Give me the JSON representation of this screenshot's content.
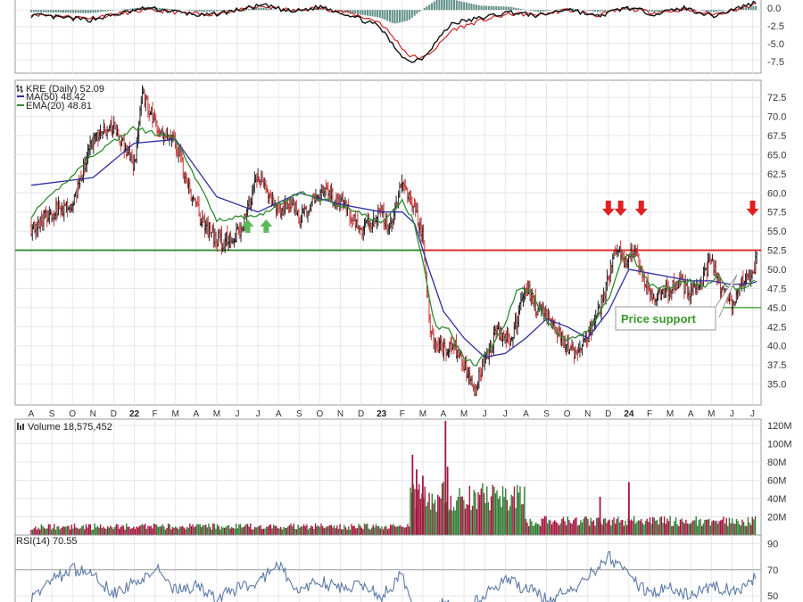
{
  "chart_data": [
    {
      "panel": "macd",
      "type": "line",
      "ylim": [
        -9.5,
        1.5
      ],
      "yticks": [
        "0.0",
        "-2.5",
        "-5.0",
        "-7.5"
      ],
      "ytick_values": [
        0,
        -2.5,
        -5,
        -7.5
      ],
      "series": [
        {
          "role": "macd",
          "color": "#111111",
          "x": [
            0,
            8,
            16,
            24,
            32,
            36,
            40,
            44,
            48,
            50,
            52,
            54,
            56,
            58,
            62,
            66,
            70,
            74,
            78,
            82,
            86,
            90,
            94,
            98,
            100
          ],
          "values": [
            -0.8,
            -1.5,
            0.3,
            -0.9,
            0.7,
            -0.3,
            0.5,
            -0.8,
            -2.5,
            -5.5,
            -7.8,
            -7.2,
            -4.5,
            -2.0,
            -1.2,
            -0.3,
            -0.9,
            0.2,
            -1.0,
            0.4,
            -0.6,
            0.3,
            -0.9,
            0.5,
            1.2
          ]
        },
        {
          "role": "signal",
          "color": "#cc2222",
          "x": [
            0,
            8,
            16,
            24,
            32,
            36,
            40,
            44,
            48,
            50,
            52,
            54,
            56,
            58,
            62,
            66,
            70,
            74,
            78,
            82,
            86,
            90,
            94,
            98,
            100
          ],
          "values": [
            -0.6,
            -1.2,
            0.0,
            -0.7,
            0.5,
            -0.1,
            0.3,
            -0.5,
            -1.8,
            -4.2,
            -6.8,
            -7.3,
            -5.5,
            -3.0,
            -1.6,
            -0.6,
            -0.7,
            0.0,
            -0.8,
            0.2,
            -0.4,
            0.1,
            -0.7,
            0.3,
            0.8
          ]
        }
      ]
    },
    {
      "panel": "price",
      "type": "line",
      "title": "KRE (Daily) 52.09",
      "ylim": [
        32.5,
        74.5
      ],
      "yticks": [
        "72.5",
        "70.0",
        "67.5",
        "65.0",
        "62.5",
        "60.0",
        "57.5",
        "55.0",
        "52.5",
        "50.0",
        "47.5",
        "45.0",
        "42.5",
        "40.0",
        "37.5",
        "35.0"
      ],
      "ytick_values": [
        72.5,
        70,
        67.5,
        65,
        62.5,
        60,
        57.5,
        55,
        52.5,
        50,
        47.5,
        45,
        42.5,
        40,
        37.5,
        35
      ],
      "xticks": [
        "A",
        "S",
        "O",
        "N",
        "D",
        "22",
        "F",
        "M",
        "A",
        "M",
        "J",
        "J",
        "A",
        "S",
        "O",
        "N",
        "D",
        "23",
        "F",
        "M",
        "A",
        "M",
        "J",
        "J",
        "A",
        "S",
        "O",
        "N",
        "D",
        "24",
        "F",
        "M",
        "A",
        "M",
        "J",
        "J"
      ],
      "xtick_positions": [
        0,
        1,
        2,
        3,
        4,
        5,
        6,
        7,
        8,
        9,
        10,
        11,
        12,
        13,
        14,
        15,
        16,
        17,
        18,
        19,
        20,
        21,
        22,
        23,
        24,
        25,
        26,
        27,
        28,
        29,
        30,
        31,
        32,
        33,
        34,
        35
      ],
      "year_ticks": [
        "22",
        "23",
        "24"
      ],
      "legend": [
        {
          "label": "KRE (Daily) 52.09",
          "color": "#000000",
          "kind": "ohlc"
        },
        {
          "label": "MA(50) 48.42",
          "color": "#2c2f9c",
          "kind": "line"
        },
        {
          "label": "EMA(20) 48.81",
          "color": "#2e8b2e",
          "kind": "line"
        }
      ],
      "series": [
        {
          "name": "KRE",
          "color": "#111111",
          "x": [
            0,
            1,
            2,
            3,
            4,
            5,
            5.4,
            6,
            7,
            8,
            8.5,
            9.3,
            10.2,
            11,
            12,
            12.6,
            13,
            14,
            15,
            16,
            17,
            17.4,
            18,
            18.6,
            18.8,
            19,
            19.4,
            20,
            20.5,
            21,
            21.5,
            22,
            22.6,
            23.3,
            24,
            24.5,
            25,
            26,
            26.5,
            27,
            27.5,
            28,
            28.3,
            28.8,
            29.2,
            29.6,
            30,
            30.5,
            31,
            31.5,
            32,
            32.5,
            33,
            33.5,
            34,
            34.5,
            35,
            35.2
          ],
          "values": [
            55.5,
            57.5,
            58.5,
            67.0,
            69.0,
            63.5,
            73.0,
            69.0,
            66.5,
            58.0,
            55.0,
            53.5,
            55.0,
            62.5,
            57.5,
            59.0,
            56.5,
            60.0,
            59.0,
            55.0,
            57.5,
            55.0,
            61.5,
            58.0,
            56.0,
            54.0,
            41.0,
            39.5,
            40.0,
            37.5,
            34.0,
            38.0,
            42.0,
            40.5,
            48.0,
            45.0,
            44.0,
            40.0,
            39.0,
            41.5,
            44.0,
            49.0,
            53.0,
            51.0,
            52.5,
            50.0,
            46.5,
            47.0,
            47.5,
            48.5,
            47.0,
            48.0,
            51.5,
            47.0,
            45.5,
            48.5,
            49.0,
            52.1
          ]
        },
        {
          "name": "MA(50)",
          "color": "#2c2f9c",
          "x": [
            0,
            3,
            5,
            7,
            9,
            11,
            13,
            15,
            17,
            18,
            18.6,
            19.3,
            20,
            21,
            22,
            23,
            24,
            25,
            26,
            27,
            28,
            29,
            30,
            31,
            32,
            33,
            34,
            35,
            35.2
          ],
          "values": [
            61.0,
            62.0,
            66.5,
            67.0,
            59.5,
            57.5,
            60.0,
            58.5,
            57.5,
            57.5,
            56.0,
            50.0,
            44.5,
            41.0,
            38.5,
            39.0,
            41.0,
            43.5,
            42.5,
            41.0,
            44.5,
            50.0,
            49.5,
            49.0,
            48.5,
            48.5,
            48.0,
            48.2,
            48.42
          ]
        },
        {
          "name": "EMA(20)",
          "color": "#2e8b2e",
          "x": [
            0,
            3,
            5,
            7,
            9,
            11,
            13,
            15,
            17,
            18,
            18.6,
            19,
            19.6,
            20.3,
            21,
            21.6,
            22.3,
            23,
            23.6,
            24.3,
            25,
            26,
            27,
            28,
            28.6,
            29,
            29.6,
            30,
            30.6,
            31.3,
            32,
            32.6,
            33.3,
            34,
            34.6,
            35.2
          ],
          "values": [
            57.0,
            65.0,
            68.5,
            67.0,
            56.5,
            57.0,
            60.0,
            58.5,
            56.0,
            59.0,
            56.0,
            51.0,
            42.5,
            42.0,
            38.5,
            37.5,
            40.0,
            43.0,
            47.5,
            47.0,
            43.0,
            40.5,
            42.0,
            46.0,
            51.0,
            52.0,
            50.0,
            48.0,
            47.5,
            48.0,
            48.5,
            47.5,
            49.0,
            47.5,
            47.5,
            48.81
          ]
        }
      ],
      "annotations": {
        "resistance": {
          "value": 52.5,
          "color": "#dd2222"
        },
        "old_support": {
          "value": 52.5,
          "color": "#2e8b2e",
          "x_end": 19.0
        },
        "price_support": {
          "value": 45.0,
          "color": "#4aa83a",
          "x_start": 30.0,
          "label": "Price support"
        },
        "up_arrows_x": [
          10.5,
          11.4
        ],
        "down_arrows_x": [
          28.0,
          28.6,
          29.6,
          35.0
        ]
      }
    },
    {
      "panel": "volume",
      "type": "bar",
      "title": "Volume 18,575,452",
      "ylim": [
        0,
        125
      ],
      "yticks": [
        "120M",
        "100M",
        "80M",
        "60M",
        "40M",
        "20M"
      ],
      "ytick_values": [
        120,
        100,
        80,
        60,
        40,
        20
      ],
      "unit": "M",
      "segments": [
        {
          "x_start": 0,
          "x_end": 18.4,
          "level": 8,
          "amp": 5
        },
        {
          "x_start": 18.4,
          "x_end": 24,
          "level": 35,
          "amp": 25
        },
        {
          "x_start": 24,
          "x_end": 35.2,
          "level": 13,
          "amp": 8
        }
      ],
      "spikes": [
        {
          "x": 18.5,
          "value": 88
        },
        {
          "x": 18.7,
          "value": 72
        },
        {
          "x": 19.0,
          "value": 65
        },
        {
          "x": 20.1,
          "value": 125
        },
        {
          "x": 20.2,
          "value": 75
        },
        {
          "x": 29.0,
          "value": 58
        },
        {
          "x": 27.6,
          "value": 42
        }
      ],
      "colors": {
        "up": "#2e7d32",
        "down": "#a3163f"
      }
    },
    {
      "panel": "rsi",
      "type": "line",
      "title": "RSI(14) 70.55",
      "ylim": [
        42,
        95
      ],
      "yticks": [
        "90",
        "70",
        "50"
      ],
      "ytick_values": [
        90,
        70,
        50
      ],
      "color": "#5d7aa6",
      "x": [
        0,
        1,
        2,
        3,
        4,
        5,
        6,
        7,
        8,
        9,
        10,
        11,
        12,
        13,
        14,
        15,
        16,
        17,
        18,
        18.6,
        19.2,
        20,
        21,
        22,
        23,
        24,
        25,
        26,
        27,
        28,
        29,
        30,
        31,
        32,
        33,
        34,
        35,
        35.2
      ],
      "values": [
        48,
        62,
        70,
        66,
        52,
        60,
        72,
        54,
        58,
        48,
        56,
        60,
        74,
        52,
        62,
        55,
        60,
        50,
        66,
        40,
        30,
        45,
        38,
        52,
        62,
        56,
        48,
        52,
        65,
        80,
        64,
        52,
        56,
        50,
        58,
        54,
        60,
        70.55
      ]
    }
  ]
}
